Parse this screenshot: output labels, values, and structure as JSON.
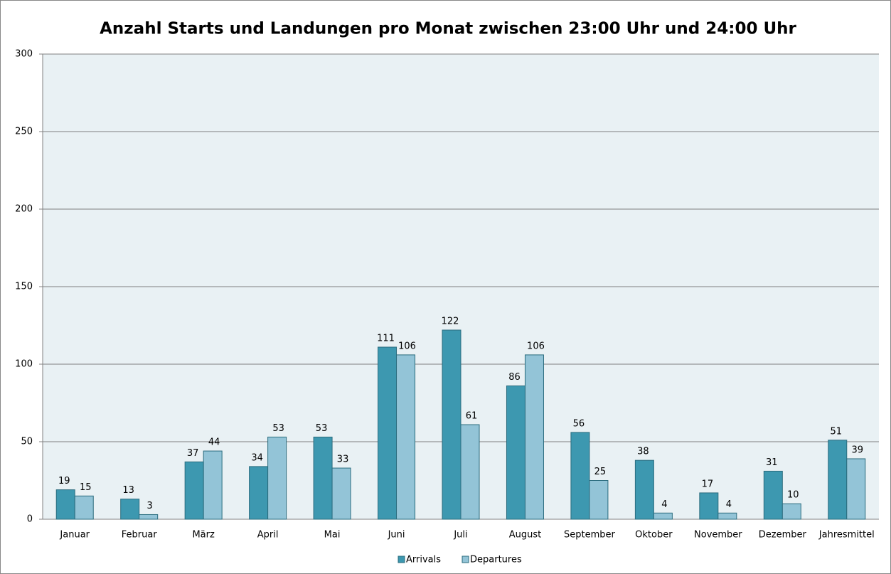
{
  "chart_data": {
    "type": "bar",
    "title": "Anzahl Starts und Landungen pro Monat zwischen 23:00 Uhr und 24:00 Uhr",
    "categories": [
      "Januar",
      "Februar",
      "März",
      "April",
      "Mai",
      "Juni",
      "Juli",
      "August",
      "September",
      "Oktober",
      "November",
      "Dezember",
      "Jahresmittel"
    ],
    "series": [
      {
        "name": "Arrivals",
        "color": "#3d98b0",
        "values": [
          19,
          13,
          37,
          34,
          53,
          111,
          122,
          86,
          56,
          38,
          17,
          31,
          51
        ]
      },
      {
        "name": "Departures",
        "color": "#93c4d7",
        "values": [
          15,
          3,
          44,
          53,
          33,
          106,
          61,
          106,
          25,
          4,
          4,
          10,
          39
        ]
      }
    ],
    "ylim": [
      0,
      300
    ],
    "yticks": [
      0,
      50,
      100,
      150,
      200,
      250,
      300
    ],
    "grid": true,
    "legend": "bottom"
  }
}
